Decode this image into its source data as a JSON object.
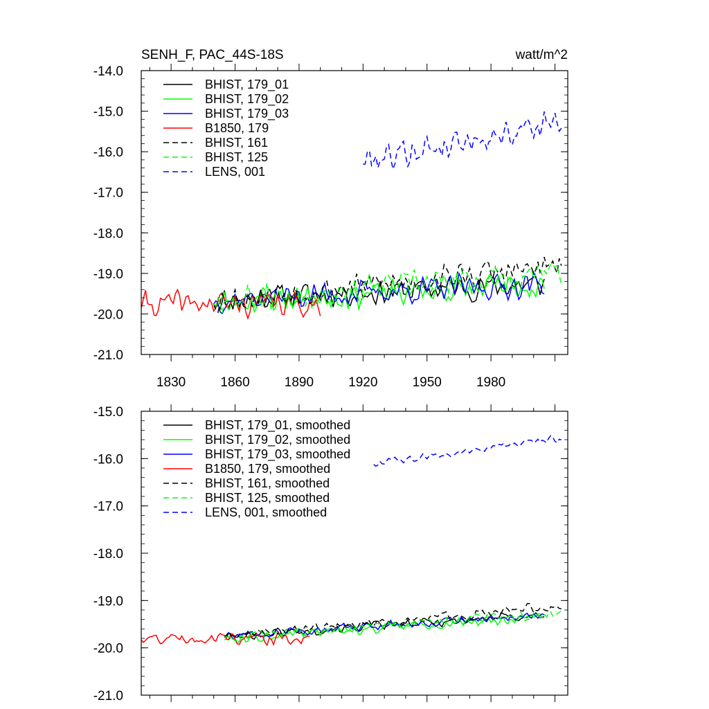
{
  "top_title_left": "SENH_F, PAC_44S-18S",
  "top_title_right": "watt/m^2",
  "legend_top": [
    {
      "label": "BHIST, 179_01",
      "color": "#000000",
      "dash": "solid"
    },
    {
      "label": "BHIST, 179_02",
      "color": "#00ff00",
      "dash": "solid"
    },
    {
      "label": "BHIST, 179_03",
      "color": "#0000ff",
      "dash": "solid"
    },
    {
      "label": "B1850, 179",
      "color": "#ff0000",
      "dash": "solid"
    },
    {
      "label": "BHIST, 161",
      "color": "#000000",
      "dash": "dashed"
    },
    {
      "label": "BHIST, 125",
      "color": "#00ff00",
      "dash": "dashed"
    },
    {
      "label": "LENS, 001",
      "color": "#0000ff",
      "dash": "dashed"
    }
  ],
  "legend_bottom": [
    {
      "label": "BHIST, 179_01, smoothed",
      "color": "#000000",
      "dash": "solid"
    },
    {
      "label": "BHIST, 179_02, smoothed",
      "color": "#00ff00",
      "dash": "solid"
    },
    {
      "label": "BHIST, 179_03, smoothed",
      "color": "#0000ff",
      "dash": "solid"
    },
    {
      "label": "B1850, 179, smoothed",
      "color": "#ff0000",
      "dash": "solid"
    },
    {
      "label": "BHIST, 161, smoothed",
      "color": "#000000",
      "dash": "dashed"
    },
    {
      "label": "BHIST, 125, smoothed",
      "color": "#00ff00",
      "dash": "dashed"
    },
    {
      "label": "LENS, 001, smoothed",
      "color": "#0000ff",
      "dash": "dashed"
    }
  ],
  "chart_data": [
    {
      "type": "line",
      "title": "SENH_F, PAC_44S-18S",
      "units": "watt/m^2",
      "xlim": [
        1816,
        2016
      ],
      "ylim": [
        -21.0,
        -14.0
      ],
      "xticks": [
        1830,
        1860,
        1890,
        1920,
        1950,
        1980
      ],
      "yticks": [
        -21.0,
        -20.0,
        -19.0,
        -18.0,
        -17.0,
        -16.0,
        -15.0,
        -14.0
      ],
      "legend_position": "top-left",
      "series": [
        {
          "name": "BHIST, 179_01",
          "color": "#000000",
          "dash": "solid",
          "x_start": 1850,
          "x_end": 2005,
          "base": -19.65,
          "trend": 0.0025,
          "amp": 0.38,
          "seed": 11
        },
        {
          "name": "BHIST, 179_02",
          "color": "#00ff00",
          "dash": "solid",
          "x_start": 1850,
          "x_end": 2005,
          "base": -19.7,
          "trend": 0.0025,
          "amp": 0.4,
          "seed": 23
        },
        {
          "name": "BHIST, 179_03",
          "color": "#0000ff",
          "dash": "solid",
          "x_start": 1850,
          "x_end": 2005,
          "base": -19.65,
          "trend": 0.0025,
          "amp": 0.38,
          "seed": 37
        },
        {
          "name": "B1850, 179",
          "color": "#ff0000",
          "dash": "solid",
          "x_start": 1816,
          "x_end": 1900,
          "base": -19.75,
          "trend": 0.0,
          "amp": 0.38,
          "seed": 41
        },
        {
          "name": "BHIST, 161",
          "color": "#000000",
          "dash": "dashed",
          "x_start": 1850,
          "x_end": 2013,
          "base": -19.65,
          "trend": 0.005,
          "amp": 0.4,
          "seed": 53
        },
        {
          "name": "BHIST, 125",
          "color": "#00ff00",
          "dash": "dashed",
          "x_start": 1850,
          "x_end": 2013,
          "base": -19.65,
          "trend": 0.004,
          "amp": 0.42,
          "seed": 67
        },
        {
          "name": "LENS, 001",
          "color": "#0000ff",
          "dash": "dashed",
          "x_start": 1920,
          "x_end": 2013,
          "base": -16.2,
          "trend": 0.01,
          "amp": 0.42,
          "seed": 79
        }
      ]
    },
    {
      "type": "line",
      "xlim": [
        1816,
        2016
      ],
      "ylim": [
        -21.0,
        -15.0
      ],
      "yticks": [
        -21.0,
        -20.0,
        -19.0,
        -18.0,
        -17.0,
        -16.0,
        -15.0
      ],
      "legend_position": "top-left",
      "series": [
        {
          "name": "BHIST, 179_01, smoothed",
          "color": "#000000",
          "dash": "solid",
          "x_start": 1855,
          "x_end": 2005,
          "base": -19.75,
          "trend": 0.003,
          "amp": 0.12,
          "seed": 101
        },
        {
          "name": "BHIST, 179_02, smoothed",
          "color": "#00ff00",
          "dash": "solid",
          "x_start": 1855,
          "x_end": 2005,
          "base": -19.8,
          "trend": 0.003,
          "amp": 0.12,
          "seed": 113
        },
        {
          "name": "BHIST, 179_03, smoothed",
          "color": "#0000ff",
          "dash": "solid",
          "x_start": 1855,
          "x_end": 2005,
          "base": -19.75,
          "trend": 0.003,
          "amp": 0.12,
          "seed": 127
        },
        {
          "name": "B1850, 179, smoothed",
          "color": "#ff0000",
          "dash": "solid",
          "x_start": 1816,
          "x_end": 1895,
          "base": -19.8,
          "trend": 0.0,
          "amp": 0.15,
          "seed": 131
        },
        {
          "name": "BHIST, 161, smoothed",
          "color": "#000000",
          "dash": "dashed",
          "x_start": 1855,
          "x_end": 2013,
          "base": -19.75,
          "trend": 0.004,
          "amp": 0.12,
          "seed": 149
        },
        {
          "name": "BHIST, 125, smoothed",
          "color": "#00ff00",
          "dash": "dashed",
          "x_start": 1855,
          "x_end": 2013,
          "base": -19.75,
          "trend": 0.003,
          "amp": 0.12,
          "seed": 157
        },
        {
          "name": "LENS, 001, smoothed",
          "color": "#0000ff",
          "dash": "dashed",
          "x_start": 1925,
          "x_end": 2013,
          "base": -16.1,
          "trend": 0.006,
          "amp": 0.1,
          "seed": 163
        }
      ]
    }
  ]
}
